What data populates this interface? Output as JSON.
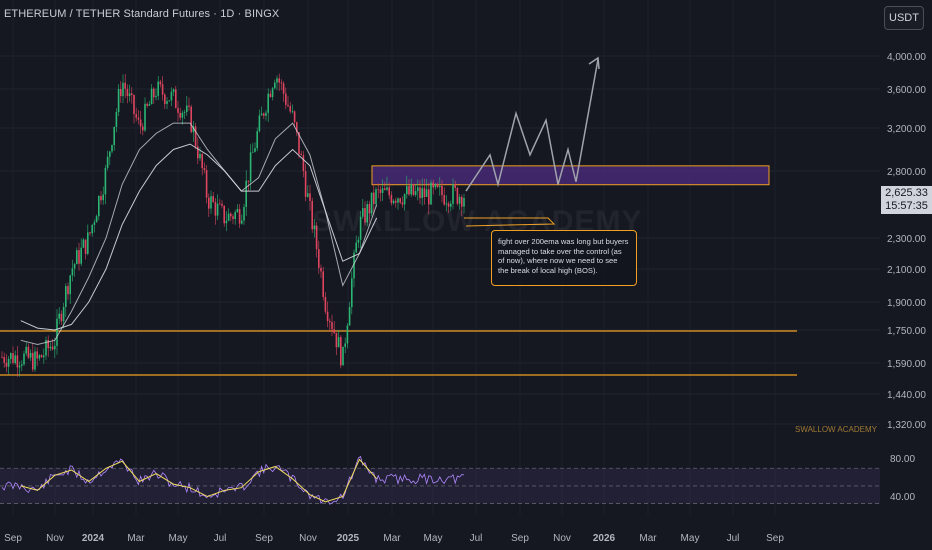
{
  "header": {
    "title": "ETHEREUM / TETHER Standard Futures · 1D · BINGX",
    "currency_button": "USDT"
  },
  "price_badge": {
    "price": "2,625.33",
    "countdown": "15:57:35"
  },
  "annotation": "fight over 200ema was long but buyers managed to take over the control (as of now), where now we need to see the break of local high (BOS).",
  "watermark": "SWALLOW ACADEMY",
  "watermark_small": "SWALLOW ACADEMY",
  "colors": {
    "background": "#151821",
    "up_candle": "#2bb673",
    "down_candle": "#e0455f",
    "ema": "#d8dbe2",
    "zone_fill": "#4a2a7a",
    "zone_border": "#f0a020",
    "projection": "#a0a3ab",
    "rsi_line": "#b388ff",
    "rsi_ma": "#f5e15c"
  },
  "chart_data": {
    "type": "line",
    "symbol": "ETHUSDT",
    "price_axis_labels": [
      "4,000.00",
      "3,600.00",
      "3,200.00",
      "2,800.00",
      "2,300.00",
      "2,100.00",
      "1,900.00",
      "1,750.00",
      "1,590.00",
      "1,440.00",
      "1,320.00"
    ],
    "time_axis_labels": [
      "Sep",
      "Nov",
      "2024",
      "Mar",
      "May",
      "Jul",
      "Sep",
      "Nov",
      "2025",
      "Mar",
      "May",
      "Jul",
      "Sep",
      "Nov",
      "2026",
      "Mar",
      "May",
      "Jul",
      "Sep"
    ],
    "rsi_axis_labels": [
      "80.00",
      "40.00"
    ],
    "x": [
      "2023-09",
      "2023-10",
      "2023-11",
      "2023-12",
      "2024-01",
      "2024-02",
      "2024-03",
      "2024-04",
      "2024-05",
      "2024-06",
      "2024-07",
      "2024-08",
      "2024-09",
      "2024-10",
      "2024-11",
      "2024-12",
      "2025-01",
      "2025-02",
      "2025-03",
      "2025-04",
      "2025-05",
      "2025-06"
    ],
    "series": [
      {
        "values": [
          1620,
          1600,
          1700,
          2100,
          2300,
          2800,
          3700,
          3200,
          3600,
          3500,
          3300,
          2600,
          2450,
          2500,
          3200,
          3800,
          3300,
          2500,
          1900,
          1600,
          2400,
          2625
        ]
      },
      {
        "values": [
          1700,
          1680,
          1700,
          1850,
          2050,
          2300,
          2700,
          3000,
          3150,
          3250,
          3250,
          3000,
          2800,
          2650,
          2750,
          3100,
          3250,
          2950,
          2500,
          2000,
          2200,
          2550
        ]
      },
      {
        "values": [
          1800,
          1760,
          1750,
          1780,
          1900,
          2100,
          2400,
          2650,
          2850,
          3000,
          3050,
          2950,
          2800,
          2650,
          2650,
          2850,
          3000,
          2850,
          2500,
          2150,
          2200,
          2450
        ]
      }
    ],
    "rsi_values": [
      50,
      45,
      62,
      68,
      55,
      70,
      78,
      55,
      64,
      52,
      48,
      38,
      45,
      48,
      66,
      72,
      58,
      40,
      32,
      38,
      80,
      58
    ],
    "supply_zone": [
      2720,
      2820
    ],
    "support_levels": [
      1740,
      1560
    ],
    "projection": {
      "x": [
        "2025-06",
        "2025-07",
        "2025-07",
        "2025-08",
        "2025-08",
        "2025-09",
        "2025-09",
        "2025-10",
        "2025-10",
        "2025-11",
        "2025-11",
        "2025-12"
      ],
      "values": [
        2650,
        2900,
        2650,
        3350,
        2950,
        3250,
        2700,
        2980,
        2700,
        3950,
        3950,
        3950
      ]
    },
    "ylim": [
      1250,
      4150
    ],
    "log_scale": false,
    "grid": true
  }
}
